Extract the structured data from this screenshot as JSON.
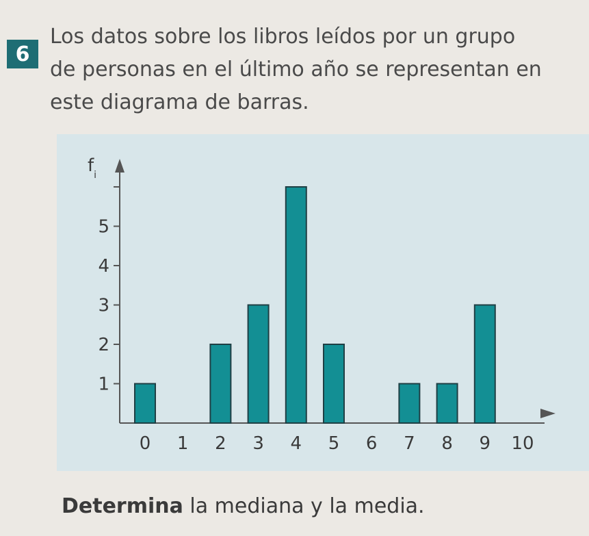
{
  "exercise": {
    "number": "6",
    "prompt": "Los datos sobre los libros leídos por un grupo de personas en el último año se representan en este diagrama de barras."
  },
  "chart_data": {
    "type": "bar",
    "ylabel": "fi",
    "x_ticks": [
      "0",
      "1",
      "2",
      "3",
      "4",
      "5",
      "6",
      "7",
      "8",
      "9",
      "10"
    ],
    "y_ticks": [
      "1",
      "2",
      "3",
      "4",
      "5"
    ],
    "categories": [
      0,
      1,
      2,
      3,
      4,
      5,
      6,
      7,
      8,
      9
    ],
    "values": [
      1,
      0,
      2,
      3,
      6,
      2,
      0,
      1,
      1,
      3
    ],
    "ylim": [
      0,
      6.5
    ],
    "bar_color": "#138f94",
    "panel_color": "#d8e6ea"
  },
  "instruction": {
    "bold": "Determina",
    "rest": " la mediana y la media."
  }
}
